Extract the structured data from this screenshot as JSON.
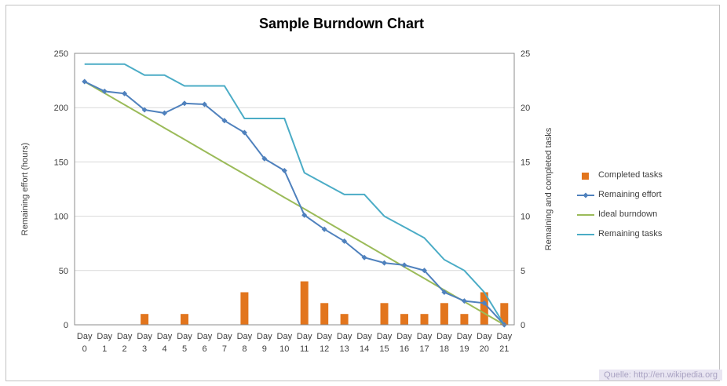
{
  "chart_data": {
    "type": "combo",
    "title": "Sample Burndown Chart",
    "categories": [
      "Day 0",
      "Day 1",
      "Day 2",
      "Day 3",
      "Day 4",
      "Day 5",
      "Day 6",
      "Day 7",
      "Day 8",
      "Day 9",
      "Day 10",
      "Day 11",
      "Day 12",
      "Day 13",
      "Day 14",
      "Day 15",
      "Day 16",
      "Day 17",
      "Day 18",
      "Day 19",
      "Day 20",
      "Day 21"
    ],
    "left_axis": {
      "label": "Remaining effort (hours)",
      "min": 0,
      "max": 250,
      "ticks": [
        0,
        50,
        100,
        150,
        200,
        250
      ]
    },
    "right_axis": {
      "label": "Remaining and completed tasks",
      "min": 0,
      "max": 25,
      "ticks": [
        0,
        5,
        10,
        15,
        20,
        25
      ]
    },
    "grid": "horizontal",
    "legend_position": "right",
    "colors": {
      "grid": "#d9d9d9",
      "plot_border": "#8c8c8c",
      "axis_text": "#3f3f3f"
    },
    "series": [
      {
        "name": "Completed tasks",
        "type": "bar",
        "axis": "right",
        "color": "#e2751d",
        "values": [
          0,
          0,
          0,
          1,
          0,
          1,
          0,
          0,
          3,
          0,
          0,
          4,
          2,
          1,
          0,
          2,
          1,
          1,
          2,
          1,
          3,
          2
        ]
      },
      {
        "name": "Remaining effort",
        "type": "line",
        "marker": "diamond",
        "axis": "left",
        "color": "#4f81bd",
        "values": [
          224,
          215,
          213,
          198,
          195,
          204,
          203,
          188,
          177,
          153,
          142,
          101,
          88,
          77,
          62,
          57,
          55,
          50,
          30,
          22,
          20,
          0
        ]
      },
      {
        "name": "Ideal burndown",
        "type": "line",
        "axis": "left",
        "color": "#9bbb59",
        "values": [
          224,
          213.3,
          202.7,
          192,
          181.3,
          170.7,
          160,
          149.3,
          138.7,
          128,
          117.3,
          106.7,
          96,
          85.3,
          74.7,
          64,
          53.3,
          42.7,
          32,
          21.3,
          10.7,
          0
        ]
      },
      {
        "name": "Remaining tasks",
        "type": "line",
        "axis": "right",
        "color": "#4bacc6",
        "values": [
          24,
          24,
          24,
          23,
          23,
          22,
          22,
          22,
          19,
          19,
          19,
          14,
          13,
          12,
          12,
          10,
          9,
          8,
          6,
          5,
          3,
          0
        ]
      }
    ]
  },
  "footer": {
    "source": "Quelle: http://en.wikipedia.org"
  }
}
